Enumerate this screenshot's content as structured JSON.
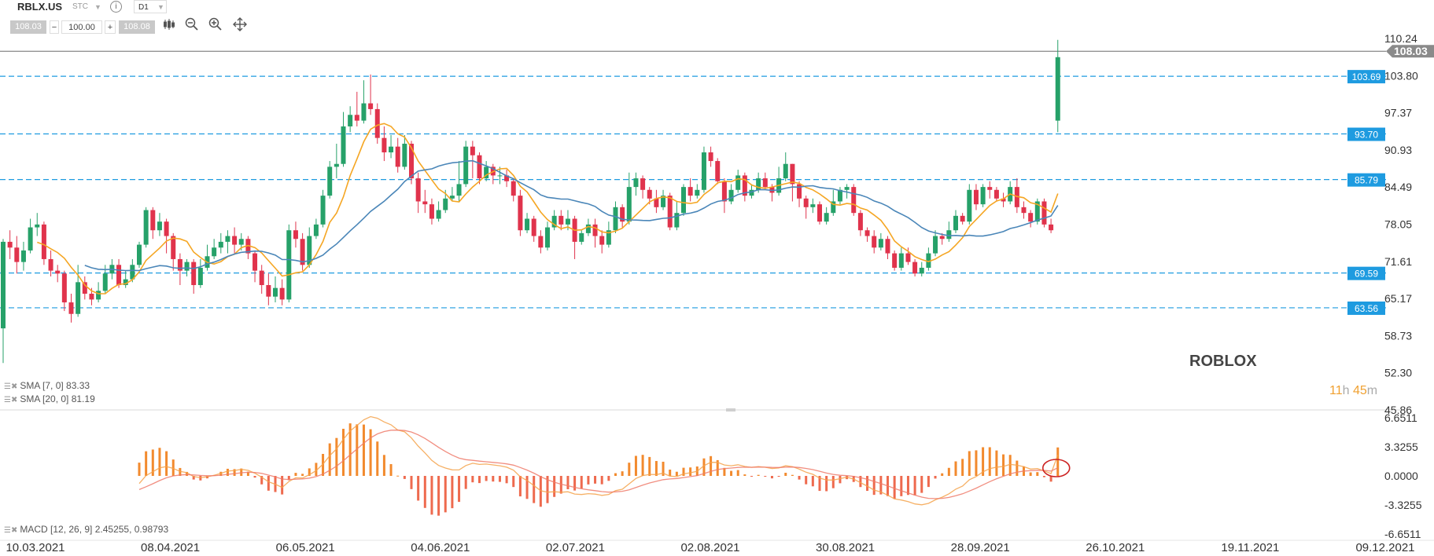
{
  "toolbar": {
    "symbol": "RBLX.US",
    "market": "STC",
    "timeframe": "D1",
    "bid": "108.03",
    "volume": "100.00",
    "ask": "108.08",
    "minus": "−",
    "plus": "+",
    "info": "i",
    "icons": [
      "candles-icon",
      "zoom-out-icon",
      "zoom-in-icon",
      "crosshair-icon"
    ]
  },
  "watermark": {
    "brand": "ROBLOX",
    "timer_h": "11",
    "timer_h_unit": "h",
    "timer_m": "45",
    "timer_m_unit": "m"
  },
  "indicators": {
    "sma7": "SMA [7, 0] 83.33",
    "sma20": "SMA [20, 0] 81.19",
    "macd": "MACD [12, 26, 9] 2.45255, 0.98793"
  },
  "colors": {
    "up": "#26a169",
    "down": "#e0334c",
    "sma7": "#f5a623",
    "sma20": "#4a86b8",
    "level": "#1e9be0",
    "hist": "#f28a2e"
  },
  "chart_data": {
    "type": "candlestick",
    "x_ticks": [
      "10.03.2021",
      "08.04.2021",
      "06.05.2021",
      "04.06.2021",
      "02.07.2021",
      "02.08.2021",
      "30.08.2021",
      "28.09.2021",
      "26.10.2021",
      "19.11.2021",
      "09.12.2021"
    ],
    "y_ticks": [
      "110.24",
      "103.80",
      "97.37",
      "90.93",
      "84.49",
      "78.05",
      "71.61",
      "65.17",
      "58.73",
      "52.30",
      "45.86"
    ],
    "ylim": [
      45.86,
      110.24
    ],
    "current_price": "108.03",
    "levels": [
      103.69,
      93.7,
      85.79,
      69.59,
      63.56
    ],
    "level_labels": [
      "103.69",
      "93.70",
      "85.79",
      "69.59",
      "63.56"
    ],
    "candles": [
      [
        60.0,
        75.0,
        54.0,
        75.5
      ],
      [
        75.0,
        74.0,
        72.0,
        77.0
      ],
      [
        74.0,
        71.5,
        69.5,
        76.0
      ],
      [
        71.5,
        73.5,
        70.0,
        75.0
      ],
      [
        73.5,
        77.5,
        73.0,
        79.0
      ],
      [
        77.5,
        78.0,
        76.0,
        80.0
      ],
      [
        78.0,
        72.0,
        71.0,
        78.5
      ],
      [
        72.0,
        70.0,
        69.0,
        73.5
      ],
      [
        70.0,
        69.5,
        68.0,
        71.0
      ],
      [
        69.5,
        64.5,
        63.0,
        70.0
      ],
      [
        64.5,
        62.5,
        61.0,
        66.0
      ],
      [
        62.5,
        68.0,
        62.0,
        71.0
      ],
      [
        68.0,
        66.0,
        65.0,
        69.0
      ],
      [
        66.0,
        65.0,
        64.0,
        67.0
      ],
      [
        65.0,
        66.5,
        64.5,
        68.0
      ],
      [
        66.5,
        69.5,
        66.0,
        71.0
      ],
      [
        69.5,
        71.0,
        68.5,
        72.0
      ],
      [
        71.0,
        67.5,
        67.0,
        72.0
      ],
      [
        67.5,
        68.5,
        67.0,
        70.0
      ],
      [
        68.5,
        71.0,
        68.0,
        72.0
      ],
      [
        71.0,
        74.5,
        70.5,
        75.0
      ],
      [
        74.5,
        80.5,
        74.0,
        81.0
      ],
      [
        80.5,
        77.0,
        75.5,
        81.0
      ],
      [
        77.0,
        78.5,
        76.0,
        80.0
      ],
      [
        78.5,
        76.0,
        73.0,
        79.0
      ],
      [
        76.0,
        72.0,
        70.0,
        76.5
      ],
      [
        72.0,
        70.0,
        67.5,
        73.0
      ],
      [
        70.0,
        71.5,
        69.0,
        72.0
      ],
      [
        71.5,
        67.5,
        66.0,
        72.0
      ],
      [
        67.5,
        70.5,
        67.0,
        72.0
      ],
      [
        70.5,
        72.5,
        70.0,
        74.5
      ],
      [
        72.5,
        74.0,
        72.0,
        75.5
      ],
      [
        74.0,
        75.0,
        73.0,
        76.5
      ],
      [
        75.0,
        76.0,
        73.0,
        77.0
      ],
      [
        76.0,
        74.5,
        73.0,
        77.5
      ],
      [
        74.5,
        75.5,
        73.5,
        76.5
      ],
      [
        75.5,
        73.0,
        72.0,
        76.0
      ],
      [
        73.0,
        70.0,
        68.0,
        73.5
      ],
      [
        70.0,
        67.5,
        66.0,
        71.0
      ],
      [
        67.5,
        65.5,
        64.0,
        69.5
      ],
      [
        65.5,
        67.0,
        64.5,
        69.0
      ],
      [
        67.0,
        65.0,
        64.0,
        68.5
      ],
      [
        65.0,
        77.0,
        64.5,
        78.0
      ],
      [
        77.0,
        75.5,
        74.0,
        78.5
      ],
      [
        75.5,
        71.0,
        70.0,
        76.5
      ],
      [
        71.0,
        76.0,
        70.5,
        77.5
      ],
      [
        76.0,
        78.0,
        75.5,
        79.0
      ],
      [
        78.0,
        83.0,
        77.5,
        84.0
      ],
      [
        83.0,
        88.0,
        82.5,
        89.0
      ],
      [
        88.0,
        88.5,
        86.0,
        92.0
      ],
      [
        88.5,
        95.0,
        88.0,
        97.5
      ],
      [
        95.0,
        97.0,
        94.0,
        98.5
      ],
      [
        97.0,
        96.0,
        95.0,
        101.0
      ],
      [
        96.0,
        99.0,
        95.5,
        103.0
      ],
      [
        99.0,
        98.0,
        97.0,
        104.0
      ],
      [
        98.0,
        93.0,
        92.0,
        99.0
      ],
      [
        93.0,
        90.5,
        89.0,
        95.0
      ],
      [
        90.5,
        91.5,
        89.5,
        93.5
      ],
      [
        91.5,
        88.0,
        87.0,
        93.0
      ],
      [
        88.0,
        92.0,
        87.5,
        93.5
      ],
      [
        92.0,
        86.0,
        85.0,
        92.5
      ],
      [
        86.0,
        82.0,
        80.0,
        87.0
      ],
      [
        82.0,
        81.5,
        80.0,
        84.0
      ],
      [
        81.5,
        79.0,
        78.0,
        82.5
      ],
      [
        79.0,
        80.5,
        78.5,
        82.0
      ],
      [
        80.5,
        82.5,
        80.0,
        84.0
      ],
      [
        82.5,
        83.0,
        82.0,
        84.5
      ],
      [
        83.0,
        85.0,
        82.0,
        89.0
      ],
      [
        85.0,
        91.5,
        84.5,
        92.5
      ],
      [
        91.5,
        90.0,
        86.0,
        92.5
      ],
      [
        90.0,
        86.0,
        85.0,
        90.5
      ],
      [
        86.0,
        88.0,
        85.5,
        89.0
      ],
      [
        88.0,
        86.5,
        85.0,
        88.5
      ],
      [
        86.5,
        86.5,
        85.0,
        88.0
      ],
      [
        86.5,
        85.5,
        84.5,
        87.5
      ],
      [
        85.5,
        83.0,
        82.0,
        86.0
      ],
      [
        83.0,
        77.0,
        76.0,
        84.0
      ],
      [
        77.0,
        79.0,
        76.5,
        80.0
      ],
      [
        79.0,
        76.0,
        75.0,
        79.5
      ],
      [
        76.0,
        74.0,
        73.0,
        77.0
      ],
      [
        74.0,
        77.5,
        73.5,
        78.5
      ],
      [
        77.5,
        79.5,
        77.0,
        80.5
      ],
      [
        79.5,
        78.0,
        77.0,
        80.5
      ],
      [
        78.0,
        79.0,
        77.0,
        80.5
      ],
      [
        79.0,
        75.0,
        72.0,
        79.5
      ],
      [
        75.0,
        76.5,
        74.5,
        77.0
      ],
      [
        76.5,
        78.0,
        76.0,
        79.0
      ],
      [
        78.0,
        76.0,
        74.0,
        79.0
      ],
      [
        76.0,
        74.5,
        73.0,
        77.0
      ],
      [
        74.5,
        77.0,
        74.0,
        78.5
      ],
      [
        77.0,
        81.0,
        76.5,
        82.0
      ],
      [
        81.0,
        78.5,
        77.5,
        81.5
      ],
      [
        78.5,
        84.5,
        78.0,
        87.0
      ],
      [
        84.5,
        86.0,
        83.0,
        87.0
      ],
      [
        86.0,
        84.0,
        82.5,
        86.5
      ],
      [
        84.0,
        82.5,
        81.5,
        84.5
      ],
      [
        82.5,
        81.0,
        80.0,
        84.0
      ],
      [
        81.0,
        83.0,
        80.5,
        84.0
      ],
      [
        83.0,
        77.5,
        77.0,
        83.5
      ],
      [
        77.5,
        80.0,
        77.0,
        82.0
      ],
      [
        80.0,
        84.5,
        79.5,
        85.0
      ],
      [
        84.5,
        83.0,
        82.0,
        86.0
      ],
      [
        83.0,
        84.0,
        82.5,
        85.0
      ],
      [
        84.0,
        90.5,
        83.5,
        91.5
      ],
      [
        90.5,
        89.0,
        88.0,
        91.5
      ],
      [
        89.0,
        85.5,
        85.0,
        89.5
      ],
      [
        85.5,
        82.0,
        80.0,
        86.0
      ],
      [
        82.0,
        84.0,
        81.5,
        85.0
      ],
      [
        84.0,
        86.5,
        83.5,
        87.5
      ],
      [
        86.5,
        83.0,
        82.0,
        87.0
      ],
      [
        83.0,
        84.0,
        82.5,
        85.0
      ],
      [
        84.0,
        86.0,
        83.5,
        87.0
      ],
      [
        86.0,
        84.5,
        84.0,
        87.0
      ],
      [
        84.5,
        83.5,
        82.0,
        85.0
      ],
      [
        83.5,
        86.0,
        83.0,
        88.0
      ],
      [
        86.0,
        88.5,
        85.5,
        90.5
      ],
      [
        88.5,
        85.0,
        82.0,
        88.5
      ],
      [
        85.0,
        82.5,
        81.0,
        85.5
      ],
      [
        82.5,
        81.0,
        79.0,
        83.0
      ],
      [
        81.0,
        81.5,
        80.0,
        82.5
      ],
      [
        81.5,
        78.5,
        78.0,
        82.0
      ],
      [
        78.5,
        80.0,
        78.0,
        81.0
      ],
      [
        80.0,
        82.0,
        79.5,
        84.0
      ],
      [
        82.0,
        84.0,
        81.5,
        84.5
      ],
      [
        84.0,
        84.5,
        82.5,
        85.0
      ],
      [
        84.5,
        80.0,
        79.5,
        85.0
      ],
      [
        80.0,
        77.0,
        76.0,
        80.5
      ],
      [
        77.0,
        76.0,
        75.0,
        77.5
      ],
      [
        76.0,
        74.0,
        73.0,
        77.0
      ],
      [
        74.0,
        75.5,
        73.5,
        76.5
      ],
      [
        75.5,
        73.0,
        72.0,
        76.0
      ],
      [
        73.0,
        70.5,
        70.0,
        73.5
      ],
      [
        70.5,
        73.0,
        70.0,
        74.0
      ],
      [
        73.0,
        71.5,
        71.0,
        74.0
      ],
      [
        71.5,
        69.5,
        69.0,
        72.0
      ],
      [
        69.5,
        70.5,
        69.0,
        71.5
      ],
      [
        70.5,
        73.0,
        70.0,
        74.0
      ],
      [
        73.0,
        76.0,
        72.5,
        77.0
      ],
      [
        76.0,
        75.5,
        74.5,
        76.5
      ],
      [
        75.5,
        77.0,
        75.0,
        78.5
      ],
      [
        77.0,
        79.5,
        76.5,
        80.5
      ],
      [
        79.5,
        78.5,
        78.0,
        80.0
      ],
      [
        78.5,
        84.0,
        78.0,
        85.0
      ],
      [
        84.0,
        81.5,
        80.5,
        85.0
      ],
      [
        81.5,
        84.5,
        81.0,
        85.0
      ],
      [
        84.5,
        84.0,
        82.5,
        85.5
      ],
      [
        84.0,
        82.5,
        82.0,
        84.5
      ],
      [
        82.5,
        82.0,
        81.0,
        83.5
      ],
      [
        82.0,
        84.5,
        81.5,
        85.5
      ],
      [
        84.5,
        81.0,
        80.0,
        86.0
      ],
      [
        81.0,
        80.0,
        79.0,
        82.0
      ],
      [
        80.0,
        78.5,
        77.5,
        80.5
      ],
      [
        78.5,
        82.0,
        78.0,
        82.5
      ],
      [
        82.0,
        78.0,
        77.5,
        82.5
      ],
      [
        78.0,
        77.0,
        76.5,
        79.0
      ],
      [
        96.0,
        107.0,
        94.0,
        110.0
      ]
    ],
    "sma7_current": 83.33,
    "sma20_current": 81.19,
    "macd_y_ticks": [
      "6.6511",
      "3.3255",
      "0.0000",
      "-3.3255",
      "-6.6511"
    ],
    "macd_ylim": [
      -6.6511,
      6.6511
    ],
    "macd": {
      "value": 2.45255,
      "signal": 0.98793
    }
  }
}
